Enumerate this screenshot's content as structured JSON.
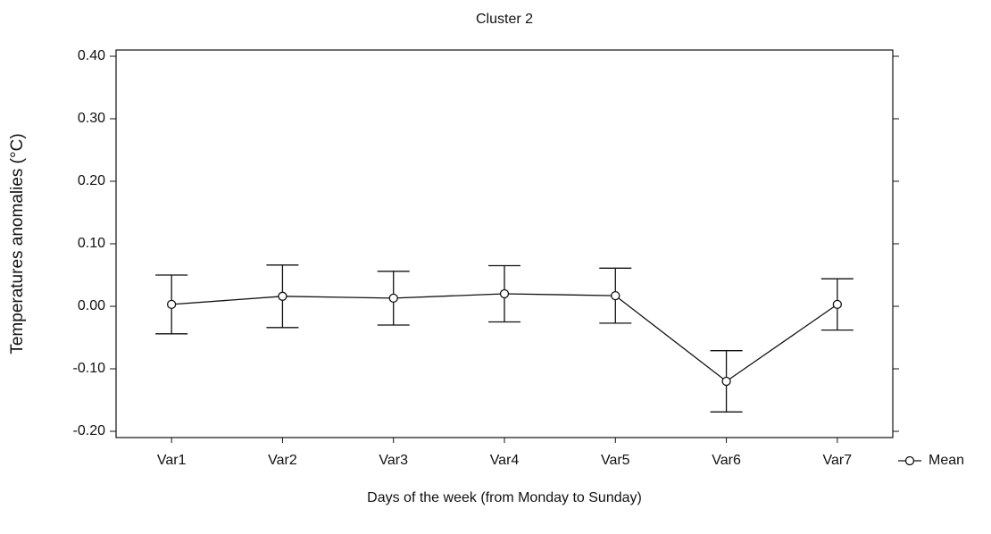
{
  "chart_data": {
    "type": "line",
    "title": "Cluster 2",
    "x_label": "Days of the week (from Monday to Sunday)",
    "y_label": "Temperatures anomalies (°C)",
    "categories": [
      "Var1",
      "Var2",
      "Var3",
      "Var4",
      "Var5",
      "Var6",
      "Var7"
    ],
    "series": [
      {
        "name": "Mean",
        "color": "#111111",
        "values": [
          0.003,
          0.016,
          0.013,
          0.02,
          0.017,
          -0.12,
          0.003
        ],
        "errors": [
          0.047,
          0.05,
          0.043,
          0.045,
          0.044,
          0.049,
          0.041
        ]
      }
    ],
    "ylim": [
      -0.21,
      0.41
    ],
    "yticks": [
      {
        "value": 0.4,
        "label": "0.40"
      },
      {
        "value": 0.3,
        "label": "0.30"
      },
      {
        "value": 0.2,
        "label": "0.20"
      },
      {
        "value": 0.1,
        "label": "0.10"
      },
      {
        "value": 0,
        "label": "0.00"
      },
      {
        "value": -0.1,
        "label": "-0.10"
      },
      {
        "value": -0.2,
        "label": "-0.20"
      }
    ],
    "grid": false,
    "legend": "right"
  }
}
